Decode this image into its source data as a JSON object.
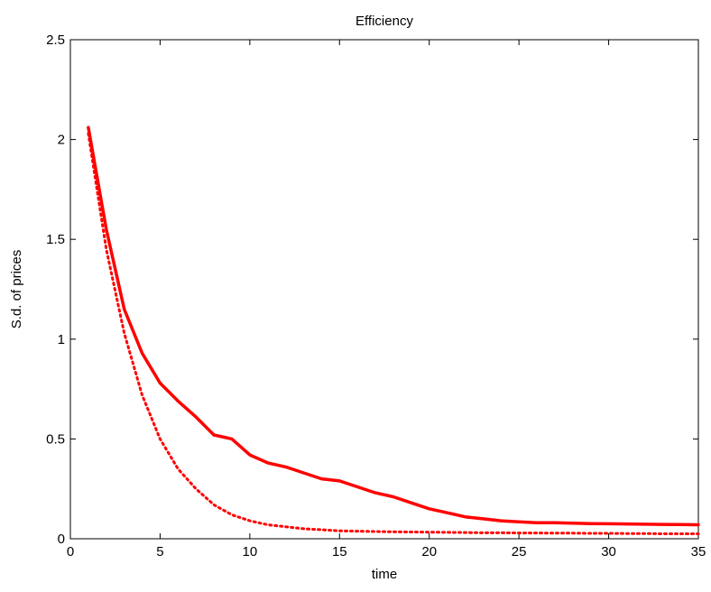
{
  "chart_data": {
    "type": "line",
    "title": "Efficiency",
    "xlabel": "time",
    "ylabel": "S.d. of prices",
    "xlim": [
      0,
      35
    ],
    "ylim": [
      0,
      2.5
    ],
    "xticks": [
      0,
      5,
      10,
      15,
      20,
      25,
      30,
      35
    ],
    "yticks": [
      0,
      0.5,
      1,
      1.5,
      2,
      2.5
    ],
    "xtick_labels": [
      "0",
      "5",
      "10",
      "15",
      "20",
      "25",
      "30",
      "35"
    ],
    "ytick_labels": [
      "0",
      "0.5",
      "1",
      "1.5",
      "2",
      "2.5"
    ],
    "grid": false,
    "legend": "none",
    "series": [
      {
        "style": "solid",
        "color": "#ff0000",
        "x": [
          1,
          2,
          3,
          4,
          5,
          6,
          7,
          8,
          9,
          10,
          11,
          12,
          13,
          14,
          15,
          16,
          17,
          18,
          19,
          20,
          21,
          22,
          23,
          24,
          25,
          26,
          27,
          28,
          29,
          30,
          31,
          32,
          33,
          34,
          35
        ],
        "y": [
          2.06,
          1.55,
          1.15,
          0.93,
          0.78,
          0.69,
          0.61,
          0.52,
          0.5,
          0.42,
          0.38,
          0.36,
          0.33,
          0.3,
          0.29,
          0.26,
          0.23,
          0.21,
          0.18,
          0.15,
          0.13,
          0.11,
          0.1,
          0.09,
          0.085,
          0.08,
          0.08,
          0.078,
          0.076,
          0.075,
          0.074,
          0.073,
          0.072,
          0.071,
          0.07
        ]
      },
      {
        "style": "dotted",
        "color": "#ff0000",
        "x": [
          1,
          2,
          3,
          4,
          5,
          6,
          7,
          8,
          9,
          10,
          11,
          12,
          13,
          14,
          15,
          16,
          17,
          18,
          19,
          20,
          21,
          22,
          23,
          24,
          25,
          26,
          27,
          28,
          29,
          30,
          31,
          32,
          33,
          34,
          35
        ],
        "y": [
          2.03,
          1.45,
          1.03,
          0.72,
          0.5,
          0.35,
          0.25,
          0.17,
          0.12,
          0.09,
          0.07,
          0.06,
          0.05,
          0.045,
          0.04,
          0.038,
          0.036,
          0.035,
          0.034,
          0.033,
          0.032,
          0.031,
          0.03,
          0.03,
          0.029,
          0.029,
          0.028,
          0.028,
          0.027,
          0.027,
          0.026,
          0.026,
          0.025,
          0.025,
          0.025
        ]
      }
    ]
  }
}
